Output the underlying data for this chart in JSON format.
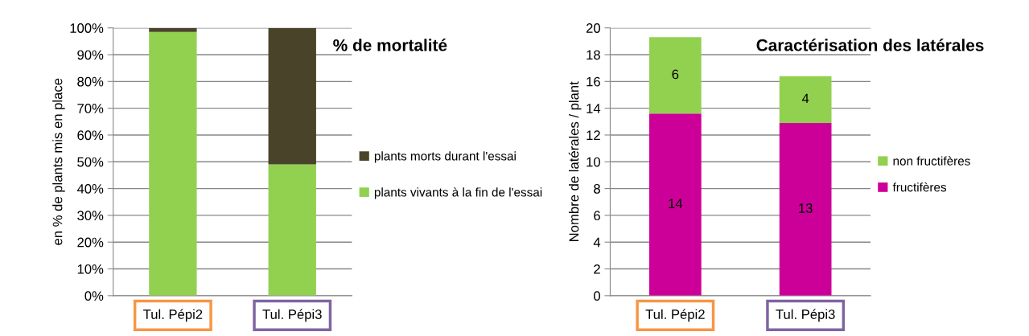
{
  "chart_data": [
    {
      "type": "bar",
      "stacked": true,
      "title": "% de mortalité",
      "ylabel": "en % de plants mis en place",
      "categories": [
        "Tul. Pépi2",
        "Tul. Pépi3"
      ],
      "series": [
        {
          "name": "plants vivants à la fin de l'essai",
          "color": "#92d050",
          "values": [
            98.5,
            49
          ]
        },
        {
          "name": "plants morts durant l'essai",
          "color": "#494429",
          "values": [
            1.5,
            51
          ]
        }
      ],
      "ylim": [
        0,
        100
      ],
      "yticks": [
        {
          "value": 0,
          "label": "0%"
        },
        {
          "value": 10,
          "label": "10%"
        },
        {
          "value": 20,
          "label": "20%"
        },
        {
          "value": 30,
          "label": "30%"
        },
        {
          "value": 40,
          "label": "40%"
        },
        {
          "value": 50,
          "label": "50%"
        },
        {
          "value": 60,
          "label": "60%"
        },
        {
          "value": 70,
          "label": "70%"
        },
        {
          "value": 80,
          "label": "80%"
        },
        {
          "value": 90,
          "label": "90%"
        },
        {
          "value": 100,
          "label": "100%"
        }
      ],
      "grid": "y",
      "legend": "right"
    },
    {
      "type": "bar",
      "stacked": true,
      "title": "Caractérisation des latérales",
      "ylabel": "Nombre de latérales / plant",
      "categories": [
        "Tul. Pépi2",
        "Tul. Pépi3"
      ],
      "series": [
        {
          "name": "fructifères",
          "color": "#cc0099",
          "values": [
            13.6,
            12.9
          ],
          "value_labels": [
            "14",
            "13"
          ]
        },
        {
          "name": "non fructifères",
          "color": "#92d050",
          "values": [
            5.7,
            3.5
          ],
          "value_labels": [
            "6",
            "4"
          ]
        }
      ],
      "ylim": [
        0,
        20
      ],
      "yticks": [
        0,
        2,
        4,
        6,
        8,
        10,
        12,
        14,
        16,
        18,
        20
      ],
      "grid": "y",
      "legend": "right"
    }
  ]
}
